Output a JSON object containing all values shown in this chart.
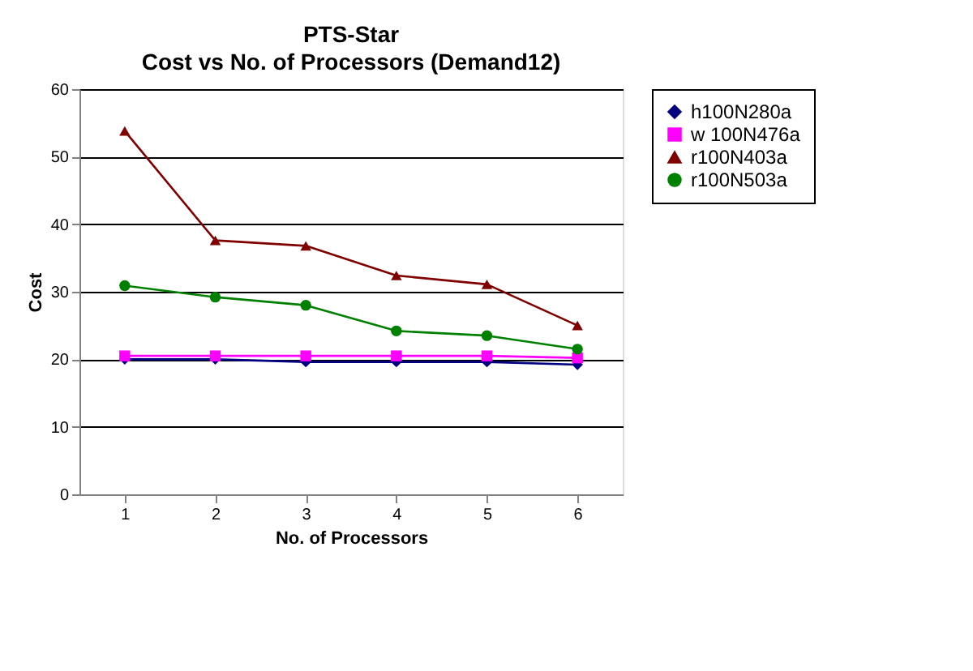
{
  "chart_data": {
    "type": "line",
    "title": "PTS-Star",
    "subtitle": "Cost vs No. of Processors (Demand12)",
    "xlabel": "No. of Processors",
    "ylabel": "Cost",
    "categories": [
      "1",
      "2",
      "3",
      "4",
      "5",
      "6"
    ],
    "series": [
      {
        "name": "h100N280a",
        "color": "#000080",
        "marker": "diamond",
        "values": [
          20,
          20,
          19.6,
          19.6,
          19.6,
          19.2
        ]
      },
      {
        "name": "w 100N476a",
        "color": "#ff00ff",
        "marker": "square",
        "values": [
          20.5,
          20.5,
          20.5,
          20.5,
          20.5,
          20.2
        ]
      },
      {
        "name": "r100N403a",
        "color": "#800000",
        "marker": "triangle",
        "values": [
          53.8,
          37.6,
          36.8,
          32.4,
          31.1,
          25
        ]
      },
      {
        "name": "r100N503a",
        "color": "#008000",
        "marker": "circle",
        "values": [
          30.9,
          29.2,
          28,
          24.2,
          23.5,
          21.5
        ]
      }
    ],
    "ylim": [
      0,
      60
    ],
    "yticks": [
      0,
      10,
      20,
      30,
      40,
      50,
      60
    ],
    "grid": "y",
    "legend": "right",
    "line_style": "solid"
  }
}
